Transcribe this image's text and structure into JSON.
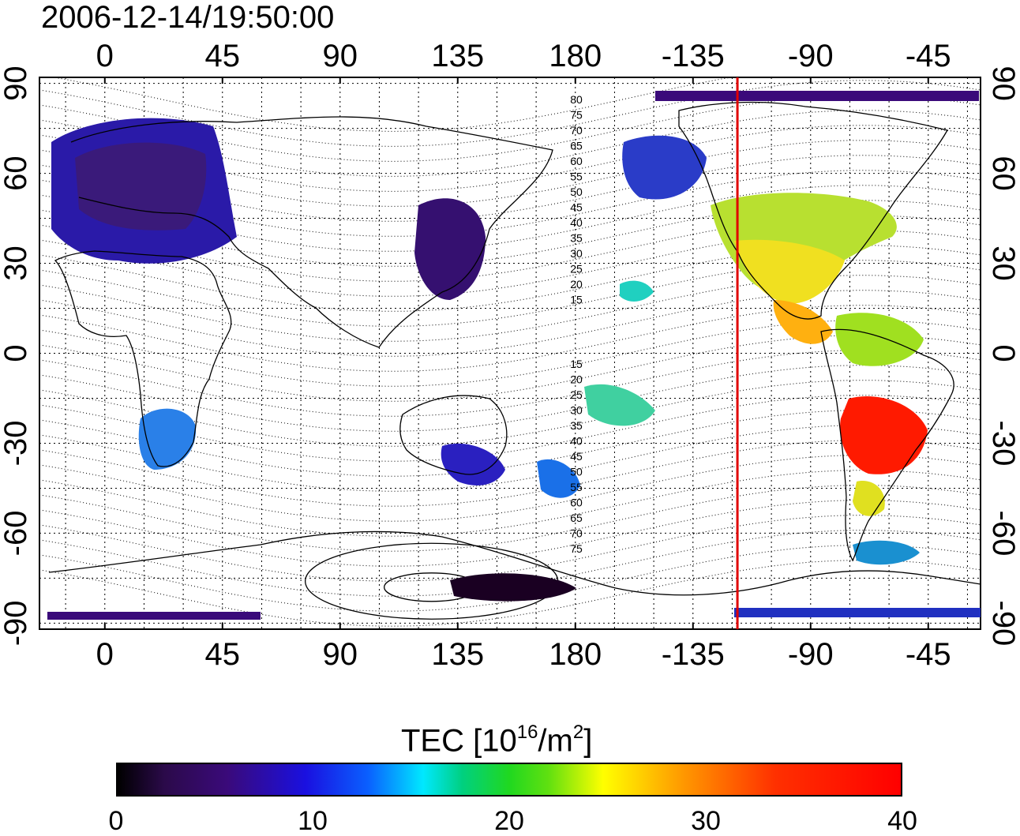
{
  "timestamp": "2006-12-14/19:50:00",
  "map": {
    "x_ticks": [
      {
        "label": "0",
        "lon": 0
      },
      {
        "label": "45",
        "lon": 45
      },
      {
        "label": "90",
        "lon": 90
      },
      {
        "label": "135",
        "lon": 135
      },
      {
        "label": "180",
        "lon": 180
      },
      {
        "label": "-135",
        "lon": 225
      },
      {
        "label": "-90",
        "lon": 270
      },
      {
        "label": "-45",
        "lon": 315
      }
    ],
    "y_ticks": [
      {
        "label": "90",
        "lat": 90
      },
      {
        "label": "60",
        "lat": 60
      },
      {
        "label": "30",
        "lat": 30
      },
      {
        "label": "0",
        "lat": 0
      },
      {
        "label": "-30",
        "lat": -30
      },
      {
        "label": "-60",
        "lat": -60
      },
      {
        "label": "-90",
        "lat": -90
      }
    ],
    "lon_range": [
      -25,
      335
    ],
    "lat_range": [
      -92,
      92
    ],
    "grid": "dotted every 15 degrees",
    "terminator_lon": 242,
    "terminator_color": "#e00000",
    "contour_labels_north": [
      "80",
      "75",
      "70",
      "65",
      "60",
      "55",
      "50",
      "45",
      "40",
      "35",
      "30",
      "25",
      "20",
      "15"
    ],
    "contour_labels_south": [
      "15",
      "20",
      "25",
      "30",
      "35",
      "40",
      "45",
      "50",
      "55",
      "60",
      "65",
      "70",
      "75"
    ],
    "colorbar": {
      "title": "TEC  [10",
      "title_sup1": "16",
      "title_mid": "/m",
      "title_sup2": "2",
      "title_end": "]",
      "ticks": [
        "0",
        "10",
        "20",
        "30",
        "40"
      ],
      "min": 0,
      "max": 40
    }
  }
}
